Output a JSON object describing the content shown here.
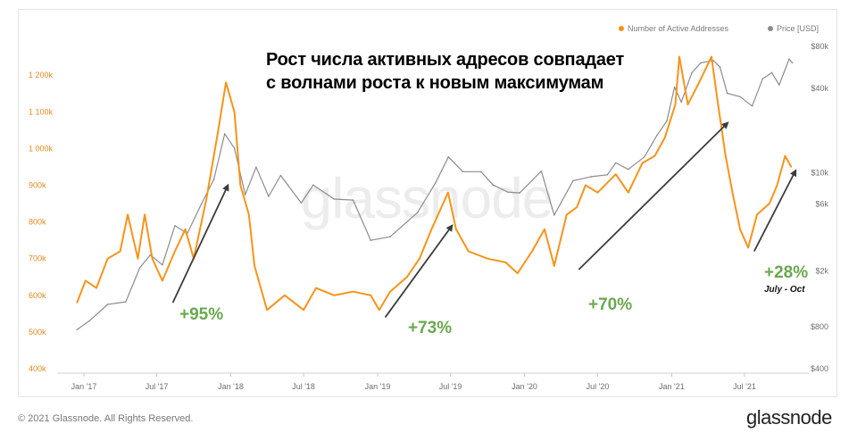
{
  "legend": {
    "active_label": "Number of Active Addresses",
    "price_label": "Price [USD]",
    "active_color": "#f7931a",
    "price_color": "#8c8c8c"
  },
  "headline": {
    "line1": "Рост числа активных адресов совпадает",
    "line2": "с волнами роста к новым максимумам"
  },
  "annotations": {
    "pct1": "+95%",
    "pct2": "+73%",
    "pct3": "+70%",
    "pct4": "+28%",
    "period_note": "July - Oct",
    "color": "#6aa84f"
  },
  "watermark": "glassnode",
  "footer": {
    "copyright": "© 2021 Glassnode. All Rights Reserved.",
    "brand": "glassnode"
  },
  "chart_data": {
    "type": "line",
    "x_ticks": [
      "Jan '17",
      "Jul '17",
      "Jan '18",
      "Jul '18",
      "Jan '19",
      "Jul '19",
      "Jan '20",
      "Jul '20",
      "Jan '21",
      "Jul '21"
    ],
    "y_left": {
      "label": "",
      "ticks": [
        "400k",
        "500k",
        "600k",
        "700k",
        "800k",
        "900k",
        "1 000k",
        "1 100k",
        "1 200k"
      ],
      "range": [
        400000,
        1260000
      ]
    },
    "y_right": {
      "label": "",
      "scale": "log",
      "ticks": [
        "$400",
        "$800",
        "$2k",
        "$6k",
        "$10k",
        "$40k",
        "$80k"
      ],
      "tick_values": [
        400,
        800,
        2000,
        6000,
        10000,
        40000,
        80000
      ]
    },
    "grid": false,
    "legend_position": "top-right",
    "series": [
      {
        "name": "Number of Active Addresses",
        "axis": "left",
        "color": "#f7931a",
        "points": [
          [
            "2016-12-15",
            580000
          ],
          [
            "2017-01-05",
            640000
          ],
          [
            "2017-02-01",
            620000
          ],
          [
            "2017-03-01",
            700000
          ],
          [
            "2017-04-01",
            720000
          ],
          [
            "2017-04-20",
            820000
          ],
          [
            "2017-05-15",
            700000
          ],
          [
            "2017-06-01",
            820000
          ],
          [
            "2017-06-20",
            700000
          ],
          [
            "2017-07-15",
            640000
          ],
          [
            "2017-08-15",
            720000
          ],
          [
            "2017-09-10",
            780000
          ],
          [
            "2017-10-01",
            700000
          ],
          [
            "2017-11-01",
            860000
          ],
          [
            "2017-12-01",
            1050000
          ],
          [
            "2017-12-20",
            1180000
          ],
          [
            "2018-01-10",
            1100000
          ],
          [
            "2018-01-25",
            900000
          ],
          [
            "2018-02-15",
            820000
          ],
          [
            "2018-03-01",
            680000
          ],
          [
            "2018-04-01",
            560000
          ],
          [
            "2018-05-15",
            600000
          ],
          [
            "2018-07-01",
            560000
          ],
          [
            "2018-08-01",
            620000
          ],
          [
            "2018-09-15",
            600000
          ],
          [
            "2018-11-01",
            610000
          ],
          [
            "2018-12-15",
            600000
          ],
          [
            "2019-01-05",
            560000
          ],
          [
            "2019-02-01",
            610000
          ],
          [
            "2019-03-15",
            650000
          ],
          [
            "2019-04-15",
            700000
          ],
          [
            "2019-05-15",
            780000
          ],
          [
            "2019-06-25",
            880000
          ],
          [
            "2019-07-15",
            780000
          ],
          [
            "2019-08-15",
            720000
          ],
          [
            "2019-10-01",
            700000
          ],
          [
            "2019-11-15",
            690000
          ],
          [
            "2019-12-15",
            660000
          ],
          [
            "2020-01-20",
            720000
          ],
          [
            "2020-02-20",
            780000
          ],
          [
            "2020-03-15",
            680000
          ],
          [
            "2020-04-15",
            820000
          ],
          [
            "2020-05-10",
            840000
          ],
          [
            "2020-06-01",
            900000
          ],
          [
            "2020-07-01",
            880000
          ],
          [
            "2020-08-15",
            930000
          ],
          [
            "2020-09-15",
            880000
          ],
          [
            "2020-10-20",
            960000
          ],
          [
            "2020-11-20",
            980000
          ],
          [
            "2020-12-15",
            1030000
          ],
          [
            "2021-01-10",
            1120000
          ],
          [
            "2021-01-20",
            1250000
          ],
          [
            "2021-02-10",
            1120000
          ],
          [
            "2021-03-10",
            1180000
          ],
          [
            "2021-04-10",
            1250000
          ],
          [
            "2021-04-25",
            1130000
          ],
          [
            "2021-05-15",
            980000
          ],
          [
            "2021-06-01",
            880000
          ],
          [
            "2021-06-20",
            780000
          ],
          [
            "2021-07-10",
            730000
          ],
          [
            "2021-08-01",
            820000
          ],
          [
            "2021-09-01",
            850000
          ],
          [
            "2021-09-20",
            900000
          ],
          [
            "2021-10-10",
            980000
          ],
          [
            "2021-10-25",
            950000
          ]
        ]
      },
      {
        "name": "Price [USD]",
        "axis": "right",
        "color": "#8c8c8c",
        "points": [
          [
            "2016-12-15",
            760
          ],
          [
            "2017-01-15",
            880
          ],
          [
            "2017-03-01",
            1150
          ],
          [
            "2017-04-15",
            1200
          ],
          [
            "2017-05-20",
            2100
          ],
          [
            "2017-06-15",
            2600
          ],
          [
            "2017-07-15",
            2200
          ],
          [
            "2017-08-15",
            4200
          ],
          [
            "2017-09-15",
            3700
          ],
          [
            "2017-10-20",
            6000
          ],
          [
            "2017-11-20",
            9000
          ],
          [
            "2017-12-17",
            19000
          ],
          [
            "2018-01-10",
            15000
          ],
          [
            "2018-02-06",
            7000
          ],
          [
            "2018-03-05",
            11000
          ],
          [
            "2018-04-05",
            6800
          ],
          [
            "2018-05-05",
            9600
          ],
          [
            "2018-06-25",
            6100
          ],
          [
            "2018-07-25",
            8200
          ],
          [
            "2018-09-15",
            6500
          ],
          [
            "2018-11-01",
            6400
          ],
          [
            "2018-12-15",
            3300
          ],
          [
            "2019-02-01",
            3500
          ],
          [
            "2019-04-10",
            5200
          ],
          [
            "2019-05-25",
            8500
          ],
          [
            "2019-06-26",
            13000
          ],
          [
            "2019-08-01",
            10200
          ],
          [
            "2019-09-15",
            10200
          ],
          [
            "2019-10-15",
            8200
          ],
          [
            "2019-11-20",
            7300
          ],
          [
            "2019-12-20",
            7200
          ],
          [
            "2020-02-12",
            10300
          ],
          [
            "2020-03-15",
            5000
          ],
          [
            "2020-05-01",
            8800
          ],
          [
            "2020-06-15",
            9400
          ],
          [
            "2020-07-25",
            9700
          ],
          [
            "2020-08-15",
            11800
          ],
          [
            "2020-09-15",
            10600
          ],
          [
            "2020-10-25",
            13000
          ],
          [
            "2020-11-25",
            18500
          ],
          [
            "2020-12-20",
            23500
          ],
          [
            "2021-01-08",
            41000
          ],
          [
            "2021-01-25",
            32000
          ],
          [
            "2021-02-20",
            52000
          ],
          [
            "2021-03-14",
            61000
          ],
          [
            "2021-04-14",
            63500
          ],
          [
            "2021-05-01",
            57000
          ],
          [
            "2021-05-19",
            37000
          ],
          [
            "2021-06-20",
            35000
          ],
          [
            "2021-07-20",
            30000
          ],
          [
            "2021-08-15",
            47000
          ],
          [
            "2021-09-07",
            52000
          ],
          [
            "2021-09-25",
            42500
          ],
          [
            "2021-10-20",
            65000
          ],
          [
            "2021-10-28",
            61000
          ]
        ]
      }
    ],
    "arrows": [
      {
        "from": [
          "2017-08-10",
          580000
        ],
        "to": [
          "2017-12-25",
          900000
        ]
      },
      {
        "from": [
          "2019-01-20",
          540000
        ],
        "to": [
          "2019-07-05",
          790000
        ]
      },
      {
        "from": [
          "2020-05-15",
          670000
        ],
        "to": [
          "2021-05-20",
          1070000
        ]
      },
      {
        "from": [
          "2021-07-25",
          720000
        ],
        "to": [
          "2021-11-05",
          940000
        ]
      }
    ]
  }
}
